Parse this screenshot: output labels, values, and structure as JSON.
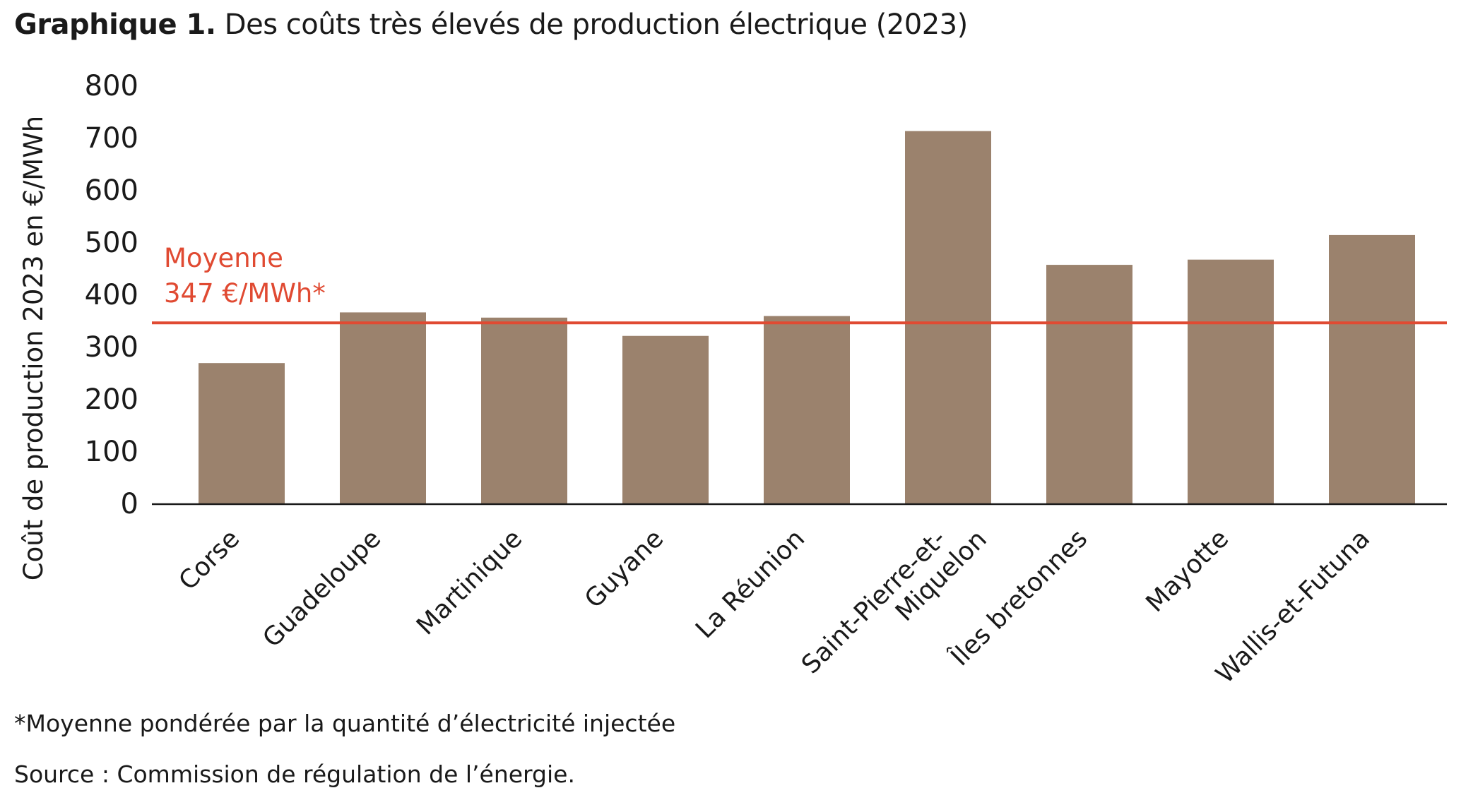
{
  "title": {
    "bold": "Graphique 1.",
    "text": " Des coûts très élevés de production électrique (2023)"
  },
  "chart_data": {
    "type": "bar",
    "categories": [
      "Corse",
      "Guadeloupe",
      "Martinique",
      "Guyane",
      "La Réunion",
      "Saint-Pierre-et-Miquelon",
      "Îles bretonnes",
      "Mayotte",
      "Wallis-et-Futuna"
    ],
    "category_lines": [
      [
        "Corse"
      ],
      [
        "Guadeloupe"
      ],
      [
        "Martinique"
      ],
      [
        "Guyane"
      ],
      [
        "La Réunion"
      ],
      [
        "Saint-Pierre-et-",
        "Miquelon"
      ],
      [
        "Îles bretonnes"
      ],
      [
        "Mayotte"
      ],
      [
        "Wallis-et-Futuna"
      ]
    ],
    "values": [
      270,
      367,
      357,
      322,
      360,
      714,
      458,
      468,
      515
    ],
    "ylabel": "Coût de production 2023 en €/MWh",
    "ylim": [
      0,
      800
    ],
    "yticks": [
      0,
      100,
      200,
      300,
      400,
      500,
      600,
      700,
      800
    ],
    "grid": false,
    "reference_line": {
      "value": 347,
      "label_line1": "Moyenne",
      "label_line2": "347 €/MWh*"
    },
    "colors": {
      "bar": "#9b826d",
      "reference": "#e04a32",
      "axis": "#1a1a1a"
    }
  },
  "notes": {
    "footnote": "*Moyenne pondérée par la quantité d’électricité injectée",
    "source": "Source : Commission de régulation de l’énergie."
  }
}
